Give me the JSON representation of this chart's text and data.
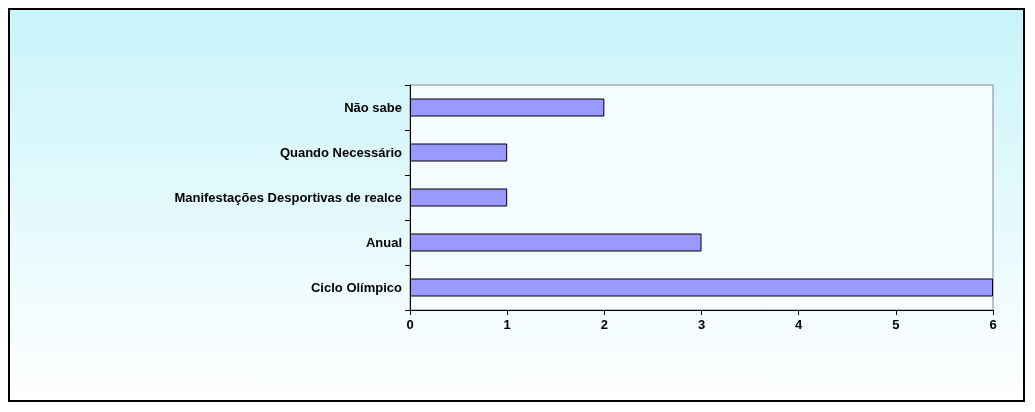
{
  "chart_data": {
    "type": "bar",
    "orientation": "horizontal",
    "categories": [
      "Não sabe",
      "Quando Necessário",
      "Manifestações Desportivas de realce",
      "Anual",
      "Ciclo Olímpico"
    ],
    "values": [
      2,
      1,
      1,
      3,
      6
    ],
    "color": "#9999ff",
    "xlim": [
      0,
      6
    ],
    "xticks": [
      0,
      1,
      2,
      3,
      4,
      5,
      6
    ],
    "grid": false
  }
}
